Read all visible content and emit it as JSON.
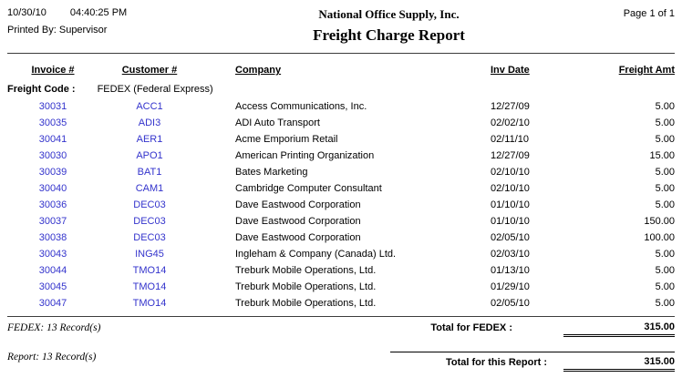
{
  "colors": {
    "link_blue": "#3333cc"
  },
  "header": {
    "date": "10/30/10",
    "time": "04:40:25 PM",
    "printed_by": "Printed By: Supervisor",
    "company": "National Office Supply, Inc.",
    "title": "Freight Charge Report",
    "page": "Page 1 of  1"
  },
  "table": {
    "columns": {
      "invoice": "Invoice #",
      "customer": "Customer #",
      "company": "Company",
      "inv_date": "Inv Date",
      "amount": "Freight Amt"
    },
    "group_header": {
      "label": "Freight Code :",
      "value": "FEDEX (Federal Express)"
    },
    "rows": [
      {
        "invoice": "30031",
        "customer": "ACC1",
        "company": "Access Communications, Inc.",
        "inv_date": "12/27/09",
        "amount": "5.00"
      },
      {
        "invoice": "30035",
        "customer": "ADI3",
        "company": "ADI Auto Transport",
        "inv_date": "02/02/10",
        "amount": "5.00"
      },
      {
        "invoice": "30041",
        "customer": "AER1",
        "company": "Acme Emporium Retail",
        "inv_date": "02/11/10",
        "amount": "5.00"
      },
      {
        "invoice": "30030",
        "customer": "APO1",
        "company": "American Printing Organization",
        "inv_date": "12/27/09",
        "amount": "15.00"
      },
      {
        "invoice": "30039",
        "customer": "BAT1",
        "company": "Bates Marketing",
        "inv_date": "02/10/10",
        "amount": "5.00"
      },
      {
        "invoice": "30040",
        "customer": "CAM1",
        "company": "Cambridge Computer Consultant",
        "inv_date": "02/10/10",
        "amount": "5.00"
      },
      {
        "invoice": "30036",
        "customer": "DEC03",
        "company": "Dave Eastwood Corporation",
        "inv_date": "01/10/10",
        "amount": "5.00"
      },
      {
        "invoice": "30037",
        "customer": "DEC03",
        "company": "Dave Eastwood Corporation",
        "inv_date": "01/10/10",
        "amount": "150.00"
      },
      {
        "invoice": "30038",
        "customer": "DEC03",
        "company": "Dave Eastwood Corporation",
        "inv_date": "02/05/10",
        "amount": "100.00"
      },
      {
        "invoice": "30043",
        "customer": "ING45",
        "company": "Ingleham & Company (Canada) Ltd.",
        "inv_date": "02/03/10",
        "amount": "5.00"
      },
      {
        "invoice": "30044",
        "customer": "TMO14",
        "company": "Treburk Mobile Operations, Ltd.",
        "inv_date": "01/13/10",
        "amount": "5.00"
      },
      {
        "invoice": "30045",
        "customer": "TMO14",
        "company": "Treburk Mobile Operations, Ltd.",
        "inv_date": "01/29/10",
        "amount": "5.00"
      },
      {
        "invoice": "30047",
        "customer": "TMO14",
        "company": "Treburk Mobile Operations, Ltd.",
        "inv_date": "02/05/10",
        "amount": "5.00"
      }
    ]
  },
  "totals": {
    "group_count": "FEDEX: 13 Record(s)",
    "group_label": "Total for FEDEX :",
    "group_amount": "315.00",
    "report_count": "Report: 13 Record(s)",
    "report_label": "Total for this Report :",
    "report_amount": "315.00"
  }
}
